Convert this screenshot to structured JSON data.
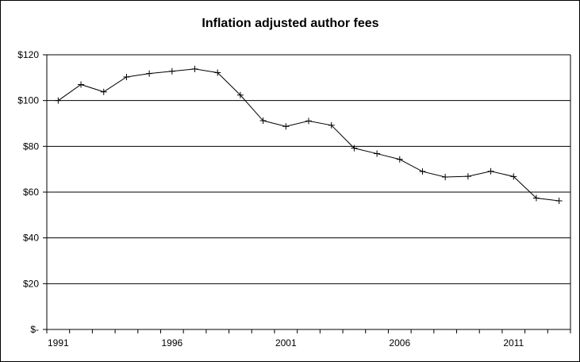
{
  "chart_data": {
    "type": "line",
    "title": "Inflation adjusted author fees",
    "xlabel": "",
    "ylabel": "",
    "x": [
      1991,
      1992,
      1993,
      1994,
      1995,
      1996,
      1997,
      1998,
      1999,
      2000,
      2001,
      2002,
      2003,
      2004,
      2005,
      2006,
      2007,
      2008,
      2009,
      2010,
      2011,
      2012,
      2013
    ],
    "series": [
      {
        "values": [
          100,
          107,
          103.8,
          110.3,
          111.8,
          112.8,
          113.8,
          112.2,
          102.4,
          91.2,
          88.7,
          91.1,
          89.2,
          79.2,
          76.8,
          74.3,
          69.0,
          66.6,
          66.9,
          69.1,
          66.8,
          57.4,
          56.2
        ]
      }
    ],
    "ylim": [
      0,
      120
    ],
    "xlim": [
      1991,
      2013
    ],
    "y_ticks": [
      {
        "value": 0,
        "label": "$-"
      },
      {
        "value": 20,
        "label": "$20"
      },
      {
        "value": 40,
        "label": "$40"
      },
      {
        "value": 60,
        "label": "$60"
      },
      {
        "value": 80,
        "label": "$80"
      },
      {
        "value": 100,
        "label": "$100"
      },
      {
        "value": 120,
        "label": "$120"
      }
    ],
    "x_tick_labels": [
      {
        "value": 1991,
        "label": "1991"
      },
      {
        "value": 1996,
        "label": "1996"
      },
      {
        "value": 2001,
        "label": "2001"
      },
      {
        "value": 2006,
        "label": "2006"
      },
      {
        "value": 2011,
        "label": "2011"
      }
    ],
    "grid": "horizontal major gridlines",
    "legend": "none",
    "line_color": "#000000",
    "marker": "plus"
  }
}
